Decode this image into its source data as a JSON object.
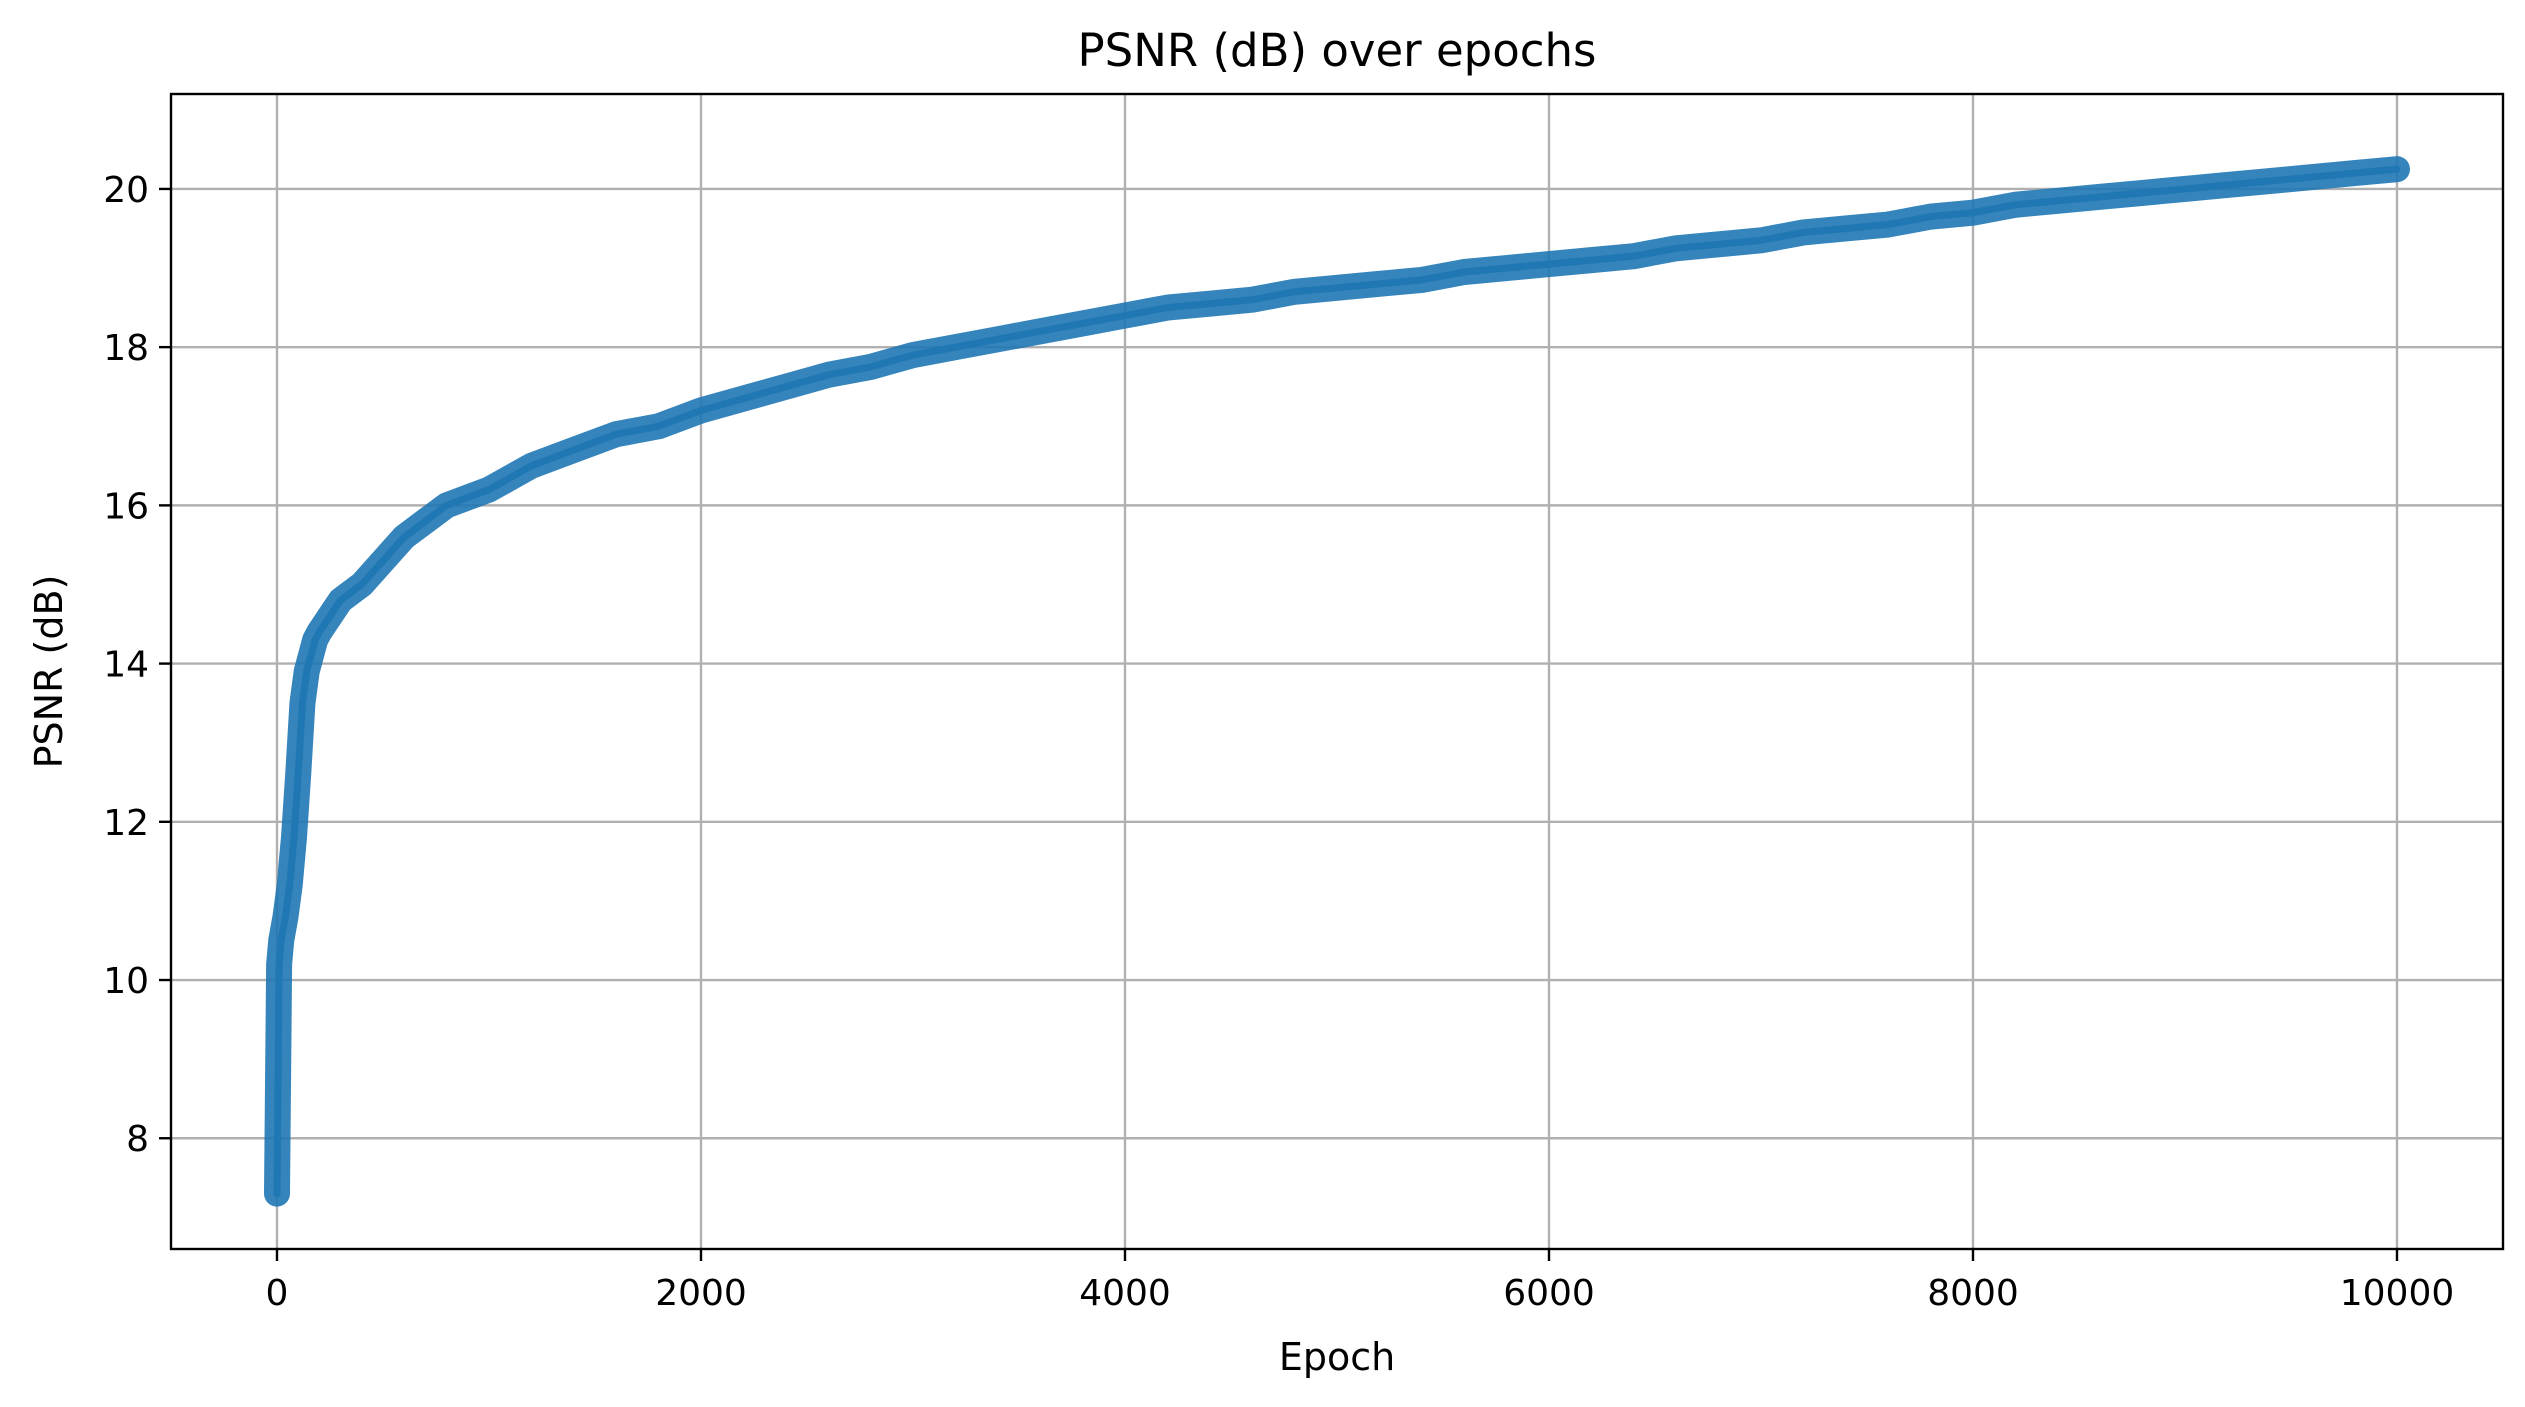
{
  "chart_data": {
    "type": "line",
    "title": "PSNR (dB) over epochs",
    "xlabel": "Epoch",
    "ylabel": "PSNR (dB)",
    "xlim": [
      -500,
      10500
    ],
    "ylim": [
      6.6,
      21.2
    ],
    "xticks": [
      0,
      2000,
      4000,
      6000,
      8000,
      10000
    ],
    "xtick_labels": [
      "0",
      "2000",
      "4000",
      "6000",
      "8000",
      "10000"
    ],
    "yticks": [
      8,
      10,
      12,
      14,
      16,
      18,
      20
    ],
    "ytick_labels": [
      "8",
      "10",
      "12",
      "14",
      "16",
      "18",
      "20"
    ],
    "grid": true,
    "legend": "none",
    "series": [
      {
        "color": "#1f77b4",
        "x": [
          0,
          10,
          20,
          40,
          60,
          80,
          100,
          120,
          140,
          160,
          180,
          200,
          250,
          300,
          400,
          500,
          600,
          700,
          800,
          900,
          1000,
          1200,
          1400,
          1600,
          1800,
          2000,
          2200,
          2400,
          2600,
          2800,
          3000,
          3200,
          3400,
          3600,
          3800,
          4000,
          4200,
          4400,
          4600,
          4800,
          5000,
          5200,
          5400,
          5600,
          5800,
          6000,
          6200,
          6400,
          6600,
          6800,
          7000,
          7200,
          7400,
          7600,
          7800,
          8000,
          8200,
          8400,
          8600,
          8800,
          9000,
          9200,
          9400,
          9600,
          9800,
          10000
        ],
        "y": [
          7.3,
          10.2,
          10.5,
          10.8,
          11.2,
          11.8,
          12.6,
          13.5,
          13.9,
          14.1,
          14.3,
          14.4,
          14.6,
          14.8,
          15.0,
          15.3,
          15.6,
          15.8,
          16.0,
          16.1,
          16.2,
          16.5,
          16.7,
          16.9,
          17.0,
          17.2,
          17.35,
          17.5,
          17.65,
          17.75,
          17.9,
          18.0,
          18.1,
          18.2,
          18.3,
          18.4,
          18.5,
          18.55,
          18.6,
          18.7,
          18.75,
          18.8,
          18.85,
          18.95,
          19.0,
          19.05,
          19.1,
          19.15,
          19.25,
          19.3,
          19.35,
          19.45,
          19.5,
          19.55,
          19.65,
          19.7,
          19.8,
          19.85,
          19.9,
          19.95,
          20.0,
          20.05,
          20.1,
          20.15,
          20.2,
          20.25
        ]
      }
    ]
  }
}
